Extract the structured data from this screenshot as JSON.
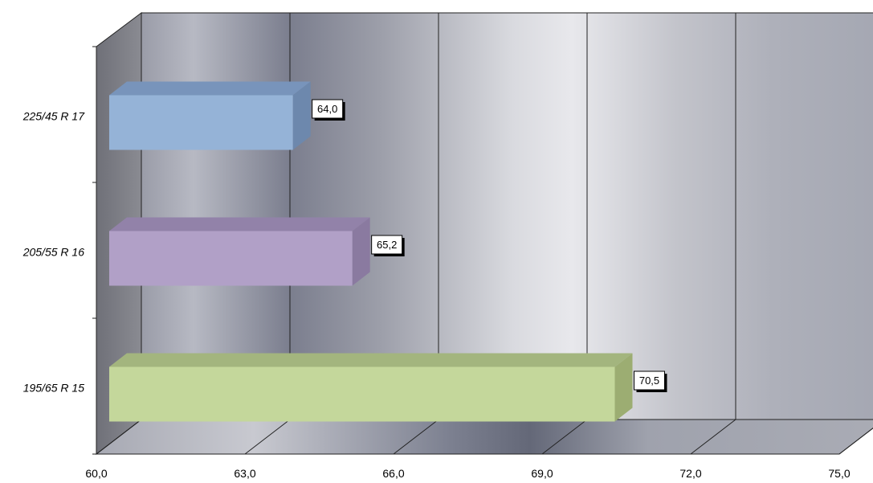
{
  "chart_data": {
    "type": "bar",
    "orientation": "horizontal",
    "style": "3d",
    "categories": [
      "225/45 R 17",
      "205/55 R 16",
      "195/65 R 15"
    ],
    "values": [
      64.0,
      65.2,
      70.5
    ],
    "data_labels": [
      "64,0",
      "65,2",
      "70,5"
    ],
    "colors": [
      "#95b3d7",
      "#b1a0c7",
      "#c4d79b"
    ],
    "side_colors": [
      "#6d88ad",
      "#8a7aa0",
      "#9cad72"
    ],
    "top_colors": [
      "#7894bb",
      "#9282a9",
      "#a3b57e"
    ],
    "xlim": [
      60.0,
      75.0
    ],
    "x_ticks": [
      60.0,
      63.0,
      66.0,
      69.0,
      72.0,
      75.0
    ],
    "x_tick_labels": [
      "60,0",
      "63,0",
      "66,0",
      "69,0",
      "72,0",
      "75,0"
    ],
    "grid": true,
    "legend": "none"
  }
}
